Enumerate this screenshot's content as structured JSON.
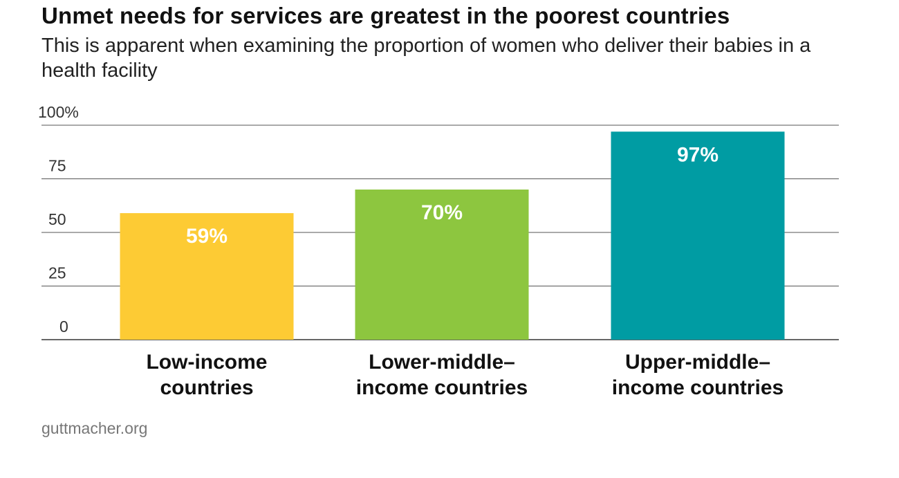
{
  "title": "Unmet needs for services are greatest in the poorest countries",
  "subtitle": "This is apparent when examining the proportion of women who deliver their babies in a health facility",
  "source": "guttmacher.org",
  "chart_data": {
    "type": "bar",
    "categories": [
      [
        "Low-income",
        "countries"
      ],
      [
        "Lower-middle–",
        "income countries"
      ],
      [
        "Upper-middle–",
        "income countries"
      ]
    ],
    "values": [
      59,
      70,
      97
    ],
    "value_labels": [
      "59%",
      "70%",
      "97%"
    ],
    "colors": [
      "#fdcb34",
      "#8dc63f",
      "#009ca3"
    ],
    "ylim": [
      0,
      100
    ],
    "yticks": [
      0,
      25,
      50,
      75,
      100
    ],
    "ytick_labels": [
      "0",
      "25",
      "50",
      "75",
      "100%"
    ],
    "grid": true,
    "xlabel": "",
    "ylabel": ""
  }
}
